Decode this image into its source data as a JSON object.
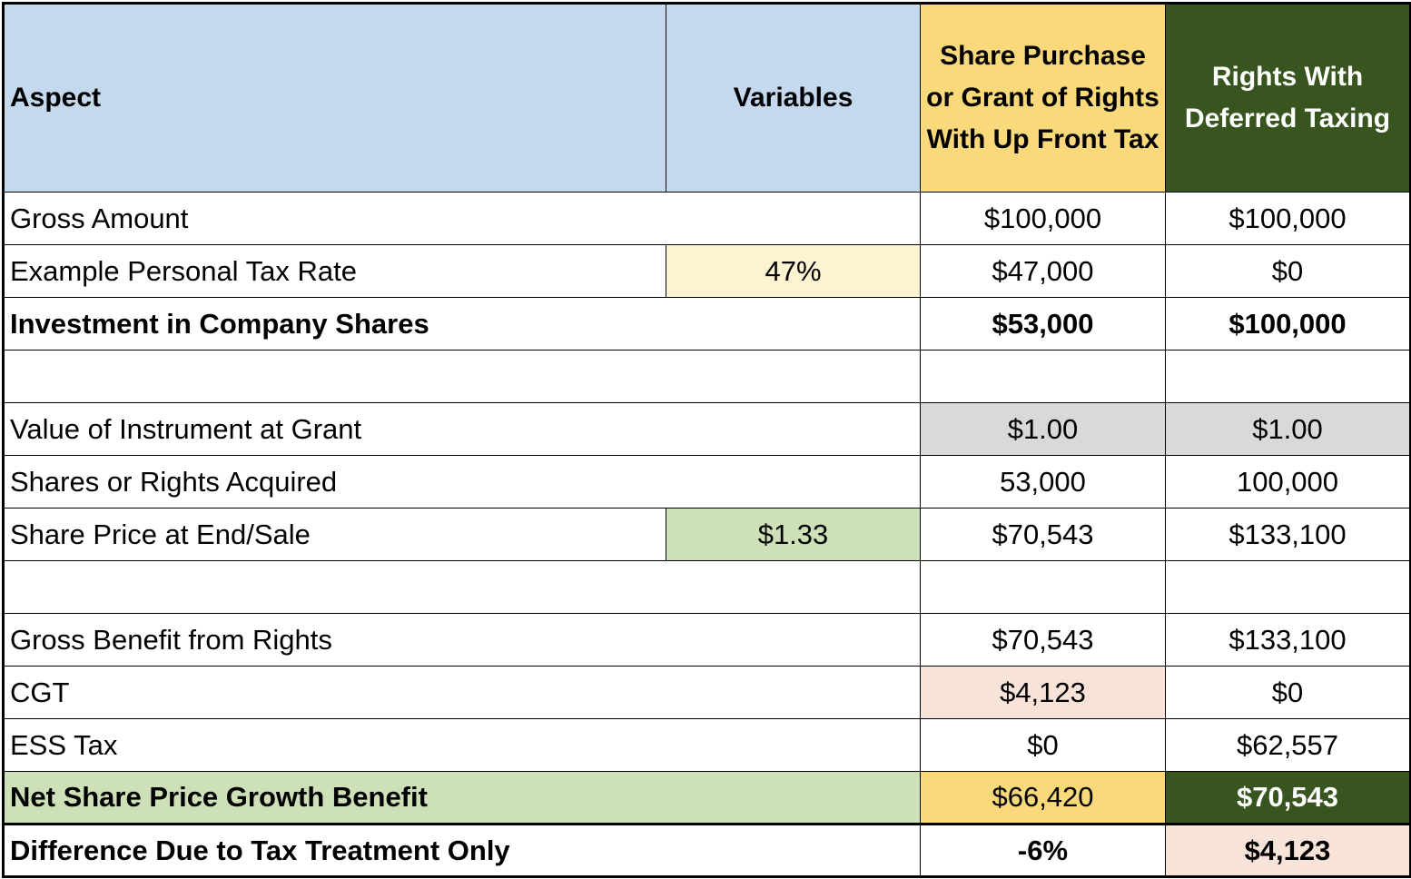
{
  "header": {
    "aspect": "Aspect",
    "variables": "Variables",
    "upfront": "Share Purchase or Grant of Rights With Up Front Tax",
    "deferred": "Rights With Deferred Taxing"
  },
  "rows": {
    "gross_amount": {
      "label": "Gross Amount",
      "upfront": "$100,000",
      "deferred": "$100,000"
    },
    "tax_rate": {
      "label": "Example Personal Tax Rate",
      "variable": "47%",
      "upfront": "$47,000",
      "deferred": "$0"
    },
    "investment": {
      "label": "Investment in Company Shares",
      "upfront": "$53,000",
      "deferred": "$100,000"
    },
    "value_at_grant": {
      "label": "Value of Instrument at Grant",
      "upfront": "$1.00",
      "deferred": "$1.00"
    },
    "shares_acquired": {
      "label": "Shares or Rights Acquired",
      "upfront": "53,000",
      "deferred": "100,000"
    },
    "share_price_end": {
      "label": "Share Price at End/Sale",
      "variable": "$1.33",
      "upfront": "$70,543",
      "deferred": "$133,100"
    },
    "gross_benefit": {
      "label": "Gross Benefit from Rights",
      "upfront": "$70,543",
      "deferred": "$133,100"
    },
    "cgt": {
      "label": "CGT",
      "upfront": "$4,123",
      "deferred": "$0"
    },
    "ess_tax": {
      "label": "ESS Tax",
      "upfront": "$0",
      "deferred": "$62,557"
    },
    "net_benefit": {
      "label": "Net Share Price Growth Benefit",
      "upfront": "$66,420",
      "deferred": "$70,543"
    },
    "difference": {
      "label": "Difference Due to Tax Treatment Only",
      "upfront": "-6%",
      "deferred": "$4,123"
    }
  },
  "colors": {
    "header_blue": "#c5d9ee",
    "header_yellow": "#fad97a",
    "header_green": "#38551f",
    "input_yellow": "#fdf3d2",
    "input_green": "#cde0b8",
    "grey": "#d9d9d9",
    "peach": "#f8e3d8"
  }
}
